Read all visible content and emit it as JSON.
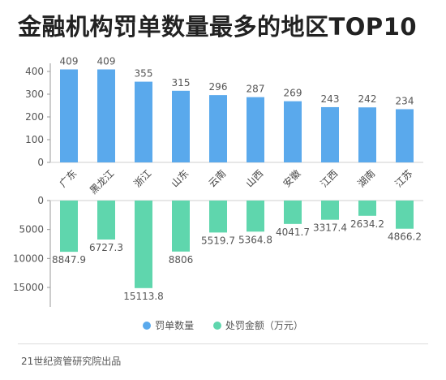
{
  "title": "金融机构罚单数量最多的地区TOP10",
  "source": "21世纪资管研究院出品",
  "colors": {
    "blue": "#5aa9ec",
    "green": "#5fd6ad",
    "axis": "#9a9a9a",
    "grid": "#cfcfcf"
  },
  "legend": [
    {
      "label": "罚单数量",
      "color": "#5aa9ec"
    },
    {
      "label": "处罚金额（万元）",
      "color": "#5fd6ad"
    }
  ],
  "chart_data": [
    {
      "type": "bar",
      "categories": [
        "广东",
        "黑龙江",
        "浙江",
        "山东",
        "云南",
        "山西",
        "安徽",
        "江西",
        "湖南",
        "江苏"
      ],
      "series": [
        {
          "name": "罚单数量",
          "values": [
            409,
            409,
            355,
            315,
            296,
            287,
            269,
            243,
            242,
            234
          ]
        }
      ],
      "ylim": [
        0,
        400
      ],
      "yticks": [
        0,
        100,
        200,
        300,
        400
      ]
    },
    {
      "type": "bar",
      "categories": [
        "广东",
        "黑龙江",
        "浙江",
        "山东",
        "云南",
        "山西",
        "安徽",
        "江西",
        "湖南",
        "江苏"
      ],
      "series": [
        {
          "name": "处罚金额（万元）",
          "values": [
            8847.9,
            6727.3,
            15113.8,
            8806,
            5519.7,
            5364.8,
            4041.7,
            3317.4,
            2634.2,
            4866.2
          ]
        }
      ],
      "ylim": [
        0,
        15000
      ],
      "yticks": [
        0,
        5000,
        10000,
        15000
      ],
      "inverted": true
    }
  ]
}
